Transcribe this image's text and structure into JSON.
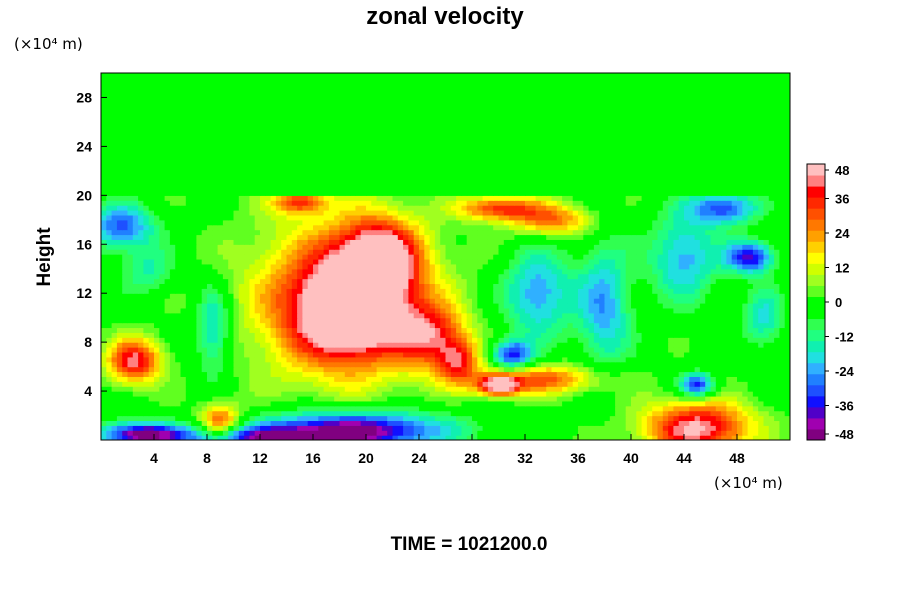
{
  "chart_data": {
    "type": "heatmap",
    "title": "zonal velocity",
    "ylabel": "Height",
    "xlabel": "",
    "x_unit": "(×10⁴ m)",
    "y_unit": "(×10⁴ m)",
    "xlim": [
      0,
      52
    ],
    "ylim": [
      0,
      30
    ],
    "x_ticks": [
      4,
      8,
      12,
      16,
      20,
      24,
      28,
      32,
      36,
      40,
      44,
      48
    ],
    "y_ticks": [
      4,
      8,
      12,
      16,
      20,
      24,
      28
    ],
    "colorbar": {
      "min": -48,
      "max": 48,
      "step": 4,
      "tick_labels": [
        48,
        36,
        24,
        12,
        0,
        -12,
        -24,
        -36,
        -48
      ],
      "colors": [
        "#800080",
        "#a000b0",
        "#5000c8",
        "#1010ff",
        "#1e50ff",
        "#2080ff",
        "#30b0ff",
        "#20e0e0",
        "#10f0b0",
        "#20ff80",
        "#30ff50",
        "#00ff00",
        "#00ff00",
        "#60ff20",
        "#a0ff20",
        "#d0ff00",
        "#ffff00",
        "#ffd000",
        "#ffa000",
        "#ff7800",
        "#ff5000",
        "#ff2800",
        "#ff0000",
        "#ff8080",
        "#ffc0c0"
      ]
    },
    "background_value": 0,
    "upper_layer": {
      "from": 20,
      "to": 30,
      "value": 0
    },
    "features": [
      {
        "x": 19,
        "y": 10.5,
        "rx": 4.0,
        "ry": 3.5,
        "value": 46
      },
      {
        "x": 18,
        "y": 11.5,
        "rx": 6.5,
        "ry": 6.5,
        "value": 36
      },
      {
        "x": 21,
        "y": 15,
        "rx": 3.0,
        "ry": 3.0,
        "value": 44
      },
      {
        "x": 20.5,
        "y": 14,
        "rx": 1.0,
        "ry": 0.8,
        "value": 24
      },
      {
        "x": 25,
        "y": 8.5,
        "rx": 2.5,
        "ry": 2.5,
        "value": 32
      },
      {
        "x": 27,
        "y": 6.5,
        "rx": 1.5,
        "ry": 1.8,
        "value": 30
      },
      {
        "x": 15,
        "y": 19.5,
        "rx": 2.0,
        "ry": 1.0,
        "value": 30
      },
      {
        "x": 30,
        "y": 19,
        "rx": 3.0,
        "ry": 1.0,
        "value": 34
      },
      {
        "x": 34,
        "y": 18,
        "rx": 3.0,
        "ry": 1.3,
        "value": 28
      },
      {
        "x": 2.5,
        "y": 6.5,
        "rx": 2.0,
        "ry": 1.8,
        "value": 42
      },
      {
        "x": 9,
        "y": 1.5,
        "rx": 1.5,
        "ry": 1.5,
        "value": 34
      },
      {
        "x": 30,
        "y": 4.5,
        "rx": 1.5,
        "ry": 0.8,
        "value": 46
      },
      {
        "x": 33,
        "y": 5,
        "rx": 5.0,
        "ry": 1.2,
        "value": 30
      },
      {
        "x": 45,
        "y": 1,
        "rx": 4.0,
        "ry": 2.2,
        "value": 46
      },
      {
        "x": 19,
        "y": 0.8,
        "rx": 7.0,
        "ry": 1.6,
        "value": -48
      },
      {
        "x": 3,
        "y": 0.5,
        "rx": 3.0,
        "ry": 1.0,
        "value": -44
      },
      {
        "x": 1.5,
        "y": 17.5,
        "rx": 2.5,
        "ry": 1.8,
        "value": -30
      },
      {
        "x": 3.5,
        "y": 14,
        "rx": 2.0,
        "ry": 2.0,
        "value": -14
      },
      {
        "x": 8.5,
        "y": 9,
        "rx": 1.3,
        "ry": 3.5,
        "value": -22
      },
      {
        "x": 33,
        "y": 12,
        "rx": 2.5,
        "ry": 3.5,
        "value": -26
      },
      {
        "x": 31,
        "y": 7,
        "rx": 1.5,
        "ry": 1.2,
        "value": -36
      },
      {
        "x": 38,
        "y": 11,
        "rx": 2.0,
        "ry": 5.0,
        "value": -24
      },
      {
        "x": 44,
        "y": 15,
        "rx": 2.5,
        "ry": 3.5,
        "value": -24
      },
      {
        "x": 47,
        "y": 19,
        "rx": 2.5,
        "ry": 1.3,
        "value": -32
      },
      {
        "x": 49,
        "y": 15,
        "rx": 1.8,
        "ry": 1.3,
        "value": -38
      },
      {
        "x": 45,
        "y": 4.5,
        "rx": 1.3,
        "ry": 1.0,
        "value": -36
      },
      {
        "x": 50,
        "y": 10,
        "rx": 1.5,
        "ry": 2.5,
        "value": -18
      },
      {
        "x": 11,
        "y": 0.2,
        "rx": 6.0,
        "ry": 1.0,
        "value": -30
      }
    ]
  },
  "time_label": "TIME = 1021200.0",
  "icons": {
    "colorbar-arrow": "triangle"
  }
}
